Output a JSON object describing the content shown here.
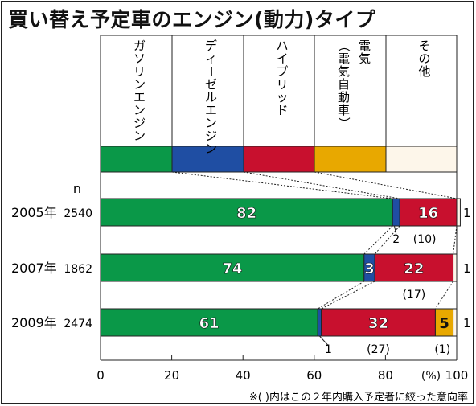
{
  "chart_data": {
    "type": "bar",
    "orientation": "horizontal",
    "stacked": true,
    "title": "買い替え予定車のエンジン(動力)タイプ",
    "n_label": "n",
    "categories": [
      {
        "year": "2005年",
        "n": "2540"
      },
      {
        "year": "2007年",
        "n": "1862"
      },
      {
        "year": "2009年",
        "n": "2474"
      }
    ],
    "series": [
      {
        "name": "ガソリンエンジン",
        "color": "#0a9848",
        "values": [
          82,
          74,
          61
        ]
      },
      {
        "name": "ディーゼルエンジン",
        "color": "#1f4ea3",
        "values": [
          2,
          3,
          1
        ]
      },
      {
        "name": "ハイブリッド",
        "color": "#c8102e",
        "values": [
          16,
          22,
          32
        ]
      },
      {
        "name": "電気（電気自動車）",
        "color": "#e8a800",
        "values": [
          0,
          0,
          5
        ]
      },
      {
        "name": "その他",
        "color": "#fdf6ea",
        "values": [
          1,
          1,
          1
        ]
      }
    ],
    "bar_labels": [
      [
        "82",
        "",
        "16",
        "",
        ""
      ],
      [
        "74",
        "3",
        "22",
        "",
        ""
      ],
      [
        "61",
        "",
        "32",
        "5",
        ""
      ]
    ],
    "outside_right_labels": [
      "1",
      "1",
      "1"
    ],
    "below_labels": [
      [
        {
          "text": "2",
          "at": 83
        },
        {
          "text": "(10)",
          "at": 91
        }
      ],
      [
        {
          "text": "(17)",
          "at": 88
        }
      ],
      [
        {
          "text": "1",
          "at": 64
        },
        {
          "text": "(27)",
          "at": 78
        },
        {
          "text": "(1)",
          "at": 96
        }
      ]
    ],
    "x_ticks": [
      "0",
      "20",
      "40",
      "60",
      "80",
      "100"
    ],
    "x_unit": "(%)",
    "xlim": [
      0,
      100
    ],
    "footnote": "※( )内はこの２年内購入予定者に絞った意向率"
  }
}
